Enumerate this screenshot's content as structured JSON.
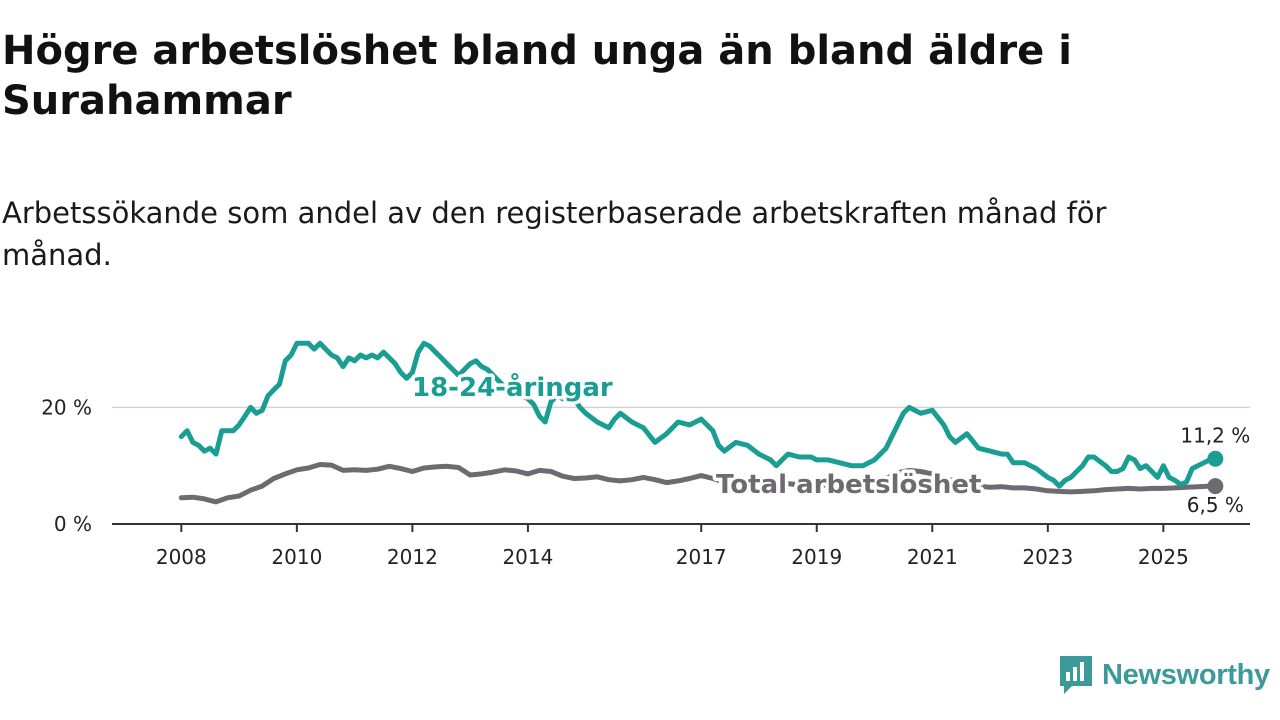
{
  "title": "Högre arbetslöshet bland unga än bland äldre i Surahammar",
  "subtitle": "Arbetssökande som andel av den registerbaserade arbetskraften månad för månad.",
  "brand": {
    "name": "Newsworthy",
    "color": "#3d9a9b",
    "icon": "newsworthy-logo-icon"
  },
  "chart_data": {
    "type": "line",
    "x_ticks": [
      {
        "label": "2008",
        "value": 2008.0
      },
      {
        "label": "2010",
        "value": 2010.0
      },
      {
        "label": "2012",
        "value": 2012.0
      },
      {
        "label": "2014",
        "value": 2014.0
      },
      {
        "label": "2017",
        "value": 2017.0
      },
      {
        "label": "2019",
        "value": 2019.0
      },
      {
        "label": "2021",
        "value": 2021.0
      },
      {
        "label": "2023",
        "value": 2023.0
      },
      {
        "label": "2025",
        "value": 2025.0
      }
    ],
    "y_ticks": [
      {
        "label": "0 %",
        "value": 0
      },
      {
        "label": "20 %",
        "value": 20
      }
    ],
    "xlim": [
      2006.8,
      2026.5
    ],
    "ylim": [
      0,
      35
    ],
    "grid": "horizontal",
    "series": [
      {
        "name": "18-24-åringar",
        "color": "#1a9e93",
        "end_label": "11,2 %",
        "points": [
          [
            2008.0,
            15
          ],
          [
            2008.1,
            16
          ],
          [
            2008.2,
            14
          ],
          [
            2008.3,
            13.5
          ],
          [
            2008.4,
            12.5
          ],
          [
            2008.5,
            13
          ],
          [
            2008.6,
            12
          ],
          [
            2008.7,
            16
          ],
          [
            2008.8,
            16
          ],
          [
            2008.9,
            16
          ],
          [
            2009.0,
            17
          ],
          [
            2009.1,
            18.5
          ],
          [
            2009.2,
            20
          ],
          [
            2009.3,
            19
          ],
          [
            2009.4,
            19.5
          ],
          [
            2009.5,
            22
          ],
          [
            2009.6,
            23
          ],
          [
            2009.7,
            24
          ],
          [
            2009.8,
            28
          ],
          [
            2009.9,
            29
          ],
          [
            2010.0,
            31
          ],
          [
            2010.2,
            31
          ],
          [
            2010.3,
            30
          ],
          [
            2010.4,
            31
          ],
          [
            2010.5,
            30
          ],
          [
            2010.6,
            29
          ],
          [
            2010.7,
            28.5
          ],
          [
            2010.8,
            27
          ],
          [
            2010.9,
            28.5
          ],
          [
            2011.0,
            28
          ],
          [
            2011.1,
            29
          ],
          [
            2011.2,
            28.5
          ],
          [
            2011.3,
            29
          ],
          [
            2011.4,
            28.5
          ],
          [
            2011.5,
            29.5
          ],
          [
            2011.6,
            28.5
          ],
          [
            2011.7,
            27.5
          ],
          [
            2011.8,
            26
          ],
          [
            2011.9,
            25
          ],
          [
            2012.0,
            26
          ],
          [
            2012.1,
            29.5
          ],
          [
            2012.2,
            31
          ],
          [
            2012.3,
            30.5
          ],
          [
            2012.4,
            29.5
          ],
          [
            2012.5,
            28.5
          ],
          [
            2012.6,
            27.5
          ],
          [
            2012.7,
            26.5
          ],
          [
            2012.8,
            25.5
          ],
          [
            2012.9,
            26.5
          ],
          [
            2013.0,
            27.5
          ],
          [
            2013.1,
            28
          ],
          [
            2013.2,
            27
          ],
          [
            2013.3,
            26.5
          ],
          [
            2013.4,
            25.5
          ],
          [
            2013.5,
            24.5
          ],
          [
            2013.6,
            23.5
          ],
          [
            2013.7,
            22.5
          ],
          [
            2013.8,
            22
          ],
          [
            2013.9,
            22
          ],
          [
            2014.0,
            21.5
          ],
          [
            2014.1,
            20.5
          ],
          [
            2014.2,
            18.5
          ],
          [
            2014.3,
            17.5
          ],
          [
            2014.4,
            21
          ],
          [
            2014.5,
            22
          ],
          [
            2014.6,
            21.5
          ],
          [
            2014.7,
            21
          ],
          [
            2014.8,
            21.5
          ],
          [
            2014.9,
            20
          ],
          [
            2015.0,
            19
          ],
          [
            2015.2,
            17.5
          ],
          [
            2015.4,
            16.5
          ],
          [
            2015.5,
            18
          ],
          [
            2015.6,
            19
          ],
          [
            2015.8,
            17.5
          ],
          [
            2016.0,
            16.5
          ],
          [
            2016.2,
            14
          ],
          [
            2016.4,
            15.5
          ],
          [
            2016.6,
            17.5
          ],
          [
            2016.8,
            17
          ],
          [
            2017.0,
            18
          ],
          [
            2017.2,
            16
          ],
          [
            2017.3,
            13.5
          ],
          [
            2017.4,
            12.5
          ],
          [
            2017.6,
            14
          ],
          [
            2017.8,
            13.5
          ],
          [
            2018.0,
            12
          ],
          [
            2018.2,
            11
          ],
          [
            2018.3,
            10
          ],
          [
            2018.5,
            12
          ],
          [
            2018.7,
            11.5
          ],
          [
            2018.9,
            11.5
          ],
          [
            2019.0,
            11
          ],
          [
            2019.2,
            11
          ],
          [
            2019.4,
            10.5
          ],
          [
            2019.6,
            10
          ],
          [
            2019.8,
            10
          ],
          [
            2020.0,
            11
          ],
          [
            2020.2,
            13
          ],
          [
            2020.3,
            15
          ],
          [
            2020.5,
            19
          ],
          [
            2020.6,
            20
          ],
          [
            2020.8,
            19
          ],
          [
            2021.0,
            19.5
          ],
          [
            2021.2,
            17
          ],
          [
            2021.3,
            15
          ],
          [
            2021.4,
            14
          ],
          [
            2021.6,
            15.5
          ],
          [
            2021.8,
            13
          ],
          [
            2022.0,
            12.5
          ],
          [
            2022.2,
            12
          ],
          [
            2022.3,
            12
          ],
          [
            2022.4,
            10.5
          ],
          [
            2022.6,
            10.5
          ],
          [
            2022.8,
            9.5
          ],
          [
            2023.0,
            8
          ],
          [
            2023.1,
            7.5
          ],
          [
            2023.2,
            6.5
          ],
          [
            2023.3,
            7.5
          ],
          [
            2023.4,
            8
          ],
          [
            2023.6,
            10
          ],
          [
            2023.7,
            11.5
          ],
          [
            2023.8,
            11.5
          ],
          [
            2024.0,
            10
          ],
          [
            2024.1,
            9
          ],
          [
            2024.2,
            9
          ],
          [
            2024.3,
            9.5
          ],
          [
            2024.4,
            11.5
          ],
          [
            2024.5,
            11
          ],
          [
            2024.6,
            9.5
          ],
          [
            2024.7,
            10
          ],
          [
            2024.8,
            9
          ],
          [
            2024.9,
            8
          ],
          [
            2025.0,
            10
          ],
          [
            2025.1,
            8
          ],
          [
            2025.2,
            7.5
          ],
          [
            2025.3,
            6.8
          ],
          [
            2025.4,
            7.2
          ],
          [
            2025.5,
            9.5
          ],
          [
            2025.6,
            10
          ],
          [
            2025.7,
            10.5
          ],
          [
            2025.8,
            11
          ],
          [
            2025.9,
            11.2
          ]
        ]
      },
      {
        "name": "Total arbetslöshet",
        "color": "#6e6b70",
        "end_label": "6,5 %",
        "points": [
          [
            2008.0,
            4.5
          ],
          [
            2008.2,
            4.6
          ],
          [
            2008.4,
            4.3
          ],
          [
            2008.6,
            3.8
          ],
          [
            2008.8,
            4.5
          ],
          [
            2009.0,
            4.8
          ],
          [
            2009.2,
            5.8
          ],
          [
            2009.4,
            6.5
          ],
          [
            2009.6,
            7.8
          ],
          [
            2009.8,
            8.6
          ],
          [
            2010.0,
            9.3
          ],
          [
            2010.2,
            9.6
          ],
          [
            2010.4,
            10.2
          ],
          [
            2010.6,
            10.1
          ],
          [
            2010.8,
            9.2
          ],
          [
            2011.0,
            9.3
          ],
          [
            2011.2,
            9.2
          ],
          [
            2011.4,
            9.4
          ],
          [
            2011.6,
            9.9
          ],
          [
            2011.8,
            9.5
          ],
          [
            2012.0,
            9
          ],
          [
            2012.2,
            9.6
          ],
          [
            2012.4,
            9.8
          ],
          [
            2012.6,
            9.9
          ],
          [
            2012.8,
            9.7
          ],
          [
            2013.0,
            8.4
          ],
          [
            2013.2,
            8.6
          ],
          [
            2013.4,
            8.9
          ],
          [
            2013.6,
            9.3
          ],
          [
            2013.8,
            9.1
          ],
          [
            2014.0,
            8.6
          ],
          [
            2014.2,
            9.2
          ],
          [
            2014.4,
            9
          ],
          [
            2014.6,
            8.2
          ],
          [
            2014.8,
            7.8
          ],
          [
            2015.0,
            7.9
          ],
          [
            2015.2,
            8.1
          ],
          [
            2015.4,
            7.6
          ],
          [
            2015.6,
            7.4
          ],
          [
            2015.8,
            7.6
          ],
          [
            2016.0,
            8.0
          ],
          [
            2016.2,
            7.6
          ],
          [
            2016.4,
            7.1
          ],
          [
            2016.6,
            7.4
          ],
          [
            2016.8,
            7.8
          ],
          [
            2017.0,
            8.3
          ],
          [
            2017.2,
            7.8
          ],
          [
            2017.4,
            7.2
          ],
          [
            2017.6,
            6.8
          ],
          [
            2017.8,
            6.9
          ],
          [
            2018.0,
            7.2
          ],
          [
            2018.2,
            6.9
          ],
          [
            2018.4,
            7.1
          ],
          [
            2018.6,
            6.8
          ],
          [
            2018.8,
            7.0
          ],
          [
            2019.0,
            6.6
          ],
          [
            2019.2,
            6.7
          ],
          [
            2019.4,
            6.6
          ],
          [
            2019.6,
            6.7
          ],
          [
            2019.8,
            7.0
          ],
          [
            2020.0,
            7.3
          ],
          [
            2020.2,
            7.8
          ],
          [
            2020.4,
            8.8
          ],
          [
            2020.6,
            9.2
          ],
          [
            2020.8,
            9.0
          ],
          [
            2021.0,
            8.6
          ],
          [
            2021.2,
            7.8
          ],
          [
            2021.4,
            7.4
          ],
          [
            2021.6,
            7.0
          ],
          [
            2021.8,
            6.5
          ],
          [
            2022.0,
            6.3
          ],
          [
            2022.2,
            6.4
          ],
          [
            2022.4,
            6.2
          ],
          [
            2022.6,
            6.2
          ],
          [
            2022.8,
            6.0
          ],
          [
            2023.0,
            5.7
          ],
          [
            2023.2,
            5.6
          ],
          [
            2023.4,
            5.5
          ],
          [
            2023.6,
            5.6
          ],
          [
            2023.8,
            5.7
          ],
          [
            2024.0,
            5.9
          ],
          [
            2024.2,
            6.0
          ],
          [
            2024.4,
            6.1
          ],
          [
            2024.6,
            6.0
          ],
          [
            2024.8,
            6.1
          ],
          [
            2025.0,
            6.1
          ],
          [
            2025.2,
            6.2
          ],
          [
            2025.4,
            6.3
          ],
          [
            2025.6,
            6.4
          ],
          [
            2025.8,
            6.5
          ],
          [
            2025.9,
            6.5
          ]
        ]
      }
    ]
  }
}
